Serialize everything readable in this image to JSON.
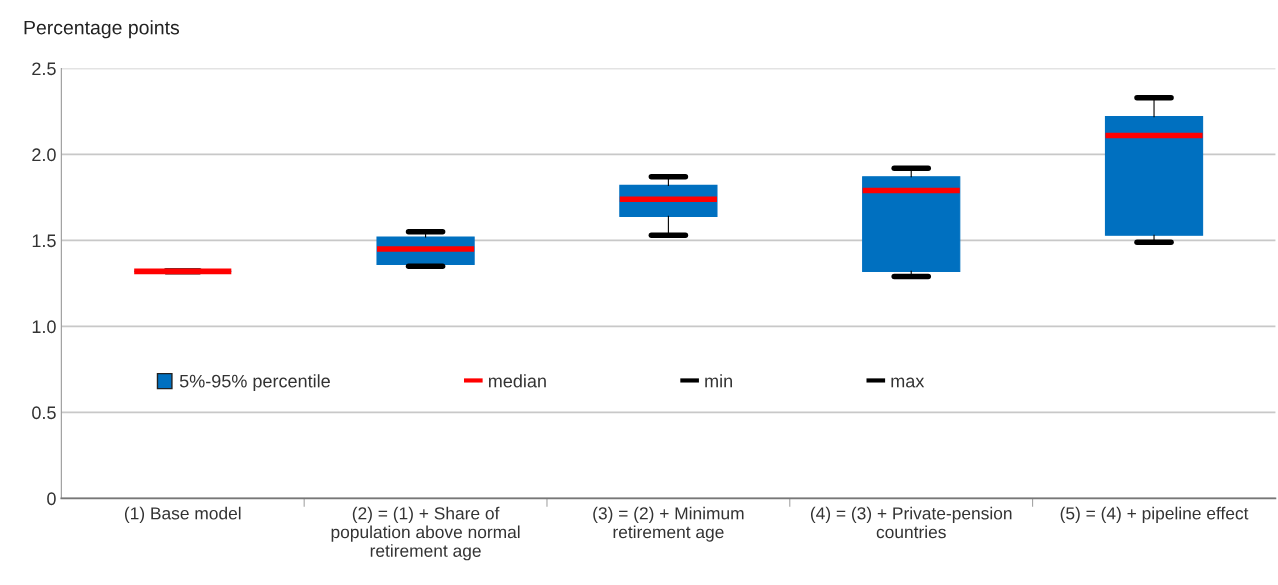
{
  "chart_data": {
    "type": "box",
    "ylabel": "Percentage points",
    "categories": [
      "(1) Base model",
      "(2) = (1) + Share of population above normal retirement age",
      "(3) = (2) + Minimum retirement age",
      "(4) = (3) + Private-pension countries",
      "(5) = (4) + pipeline effect"
    ],
    "series": [
      {
        "name": "5%-95% percentile",
        "color": "#0070c0",
        "boxes": [
          {
            "low": 1.32,
            "q1": 1.32,
            "median": 1.32,
            "q3": 1.32,
            "high": 1.32
          },
          {
            "low": 1.35,
            "q1": 1.36,
            "median": 1.45,
            "q3": 1.52,
            "high": 1.55
          },
          {
            "low": 1.53,
            "q1": 1.64,
            "median": 1.74,
            "q3": 1.82,
            "high": 1.87
          },
          {
            "low": 1.29,
            "q1": 1.32,
            "median": 1.79,
            "q3": 1.87,
            "high": 1.92
          },
          {
            "low": 1.49,
            "q1": 1.53,
            "median": 2.11,
            "q3": 2.22,
            "high": 2.33
          }
        ]
      }
    ],
    "annotations": [
      "median",
      "min",
      "max"
    ],
    "ylim": [
      0,
      2.5
    ],
    "yticks": [
      0,
      {
        "value": 0.5,
        "label": "0.5"
      },
      {
        "value": 1,
        "label": "1.0"
      },
      {
        "value": 1.5,
        "label": "1.5"
      },
      {
        "value": 2,
        "label": "2.0"
      },
      {
        "value": 2.5,
        "label": "2.5"
      }
    ],
    "grid": "y",
    "legend": "center"
  }
}
